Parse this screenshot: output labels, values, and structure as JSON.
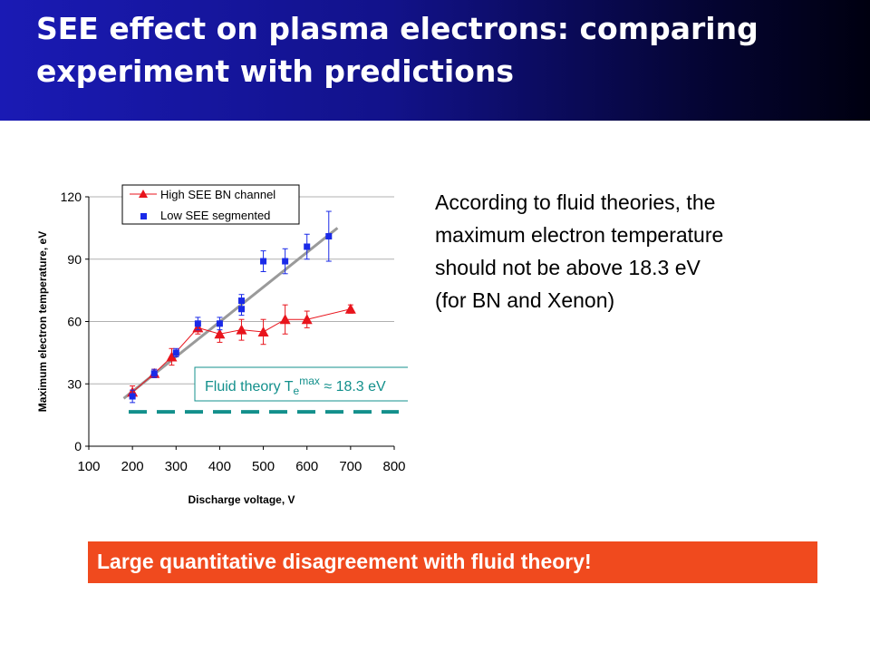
{
  "slide": {
    "title_line1": "SEE effect on plasma electrons: comparing",
    "title_line2": "experiment with predictions",
    "description_lines": [
      "According to fluid theories, the",
      "maximum electron temperature",
      "should not be above 18.3 eV",
      "(for BN and Xenon)"
    ],
    "banner_text": "Large quantitative disagreement with fluid theory!"
  },
  "colors": {
    "high_see": "#e8141c",
    "low_see": "#1a2ae8",
    "fit_line": "#9a9a9a",
    "theory_line": "#13908c",
    "banner": "#f04a1e"
  },
  "chart_data": {
    "type": "scatter",
    "xlabel": "Discharge voltage, V",
    "ylabel": "Maximum electron temperature, eV",
    "xlim": [
      100,
      800
    ],
    "ylim": [
      0,
      120
    ],
    "xticks": [
      100,
      200,
      300,
      400,
      500,
      600,
      700,
      800
    ],
    "yticks": [
      0,
      30,
      60,
      90,
      120
    ],
    "grid": "horizontal",
    "legend_position": "top-left",
    "series": [
      {
        "name": "High SEE BN channel",
        "marker": "triangle",
        "x": [
          200,
          250,
          290,
          350,
          400,
          450,
          500,
          550,
          600,
          700
        ],
        "y": [
          26,
          35,
          43,
          57,
          54,
          56,
          55,
          61,
          61,
          66
        ],
        "err": [
          3,
          2,
          4,
          3,
          4,
          5,
          6,
          7,
          4,
          2
        ]
      },
      {
        "name": "Low SEE segmented",
        "marker": "square",
        "x": [
          200,
          250,
          300,
          350,
          400,
          450,
          450,
          500,
          550,
          600,
          650
        ],
        "y": [
          24,
          35,
          45,
          59,
          59,
          70,
          66,
          89,
          89,
          96,
          101
        ],
        "err": [
          3,
          2,
          2,
          3,
          3,
          3,
          3,
          5,
          6,
          6,
          12
        ]
      }
    ],
    "fit_line": {
      "x": [
        180,
        670
      ],
      "y": [
        23,
        105
      ]
    },
    "annotation": {
      "label": "Fluid theory T",
      "sub": "e",
      "sup": "max",
      "tail": " ≈ 18.3 eV",
      "value": 18.3
    }
  }
}
